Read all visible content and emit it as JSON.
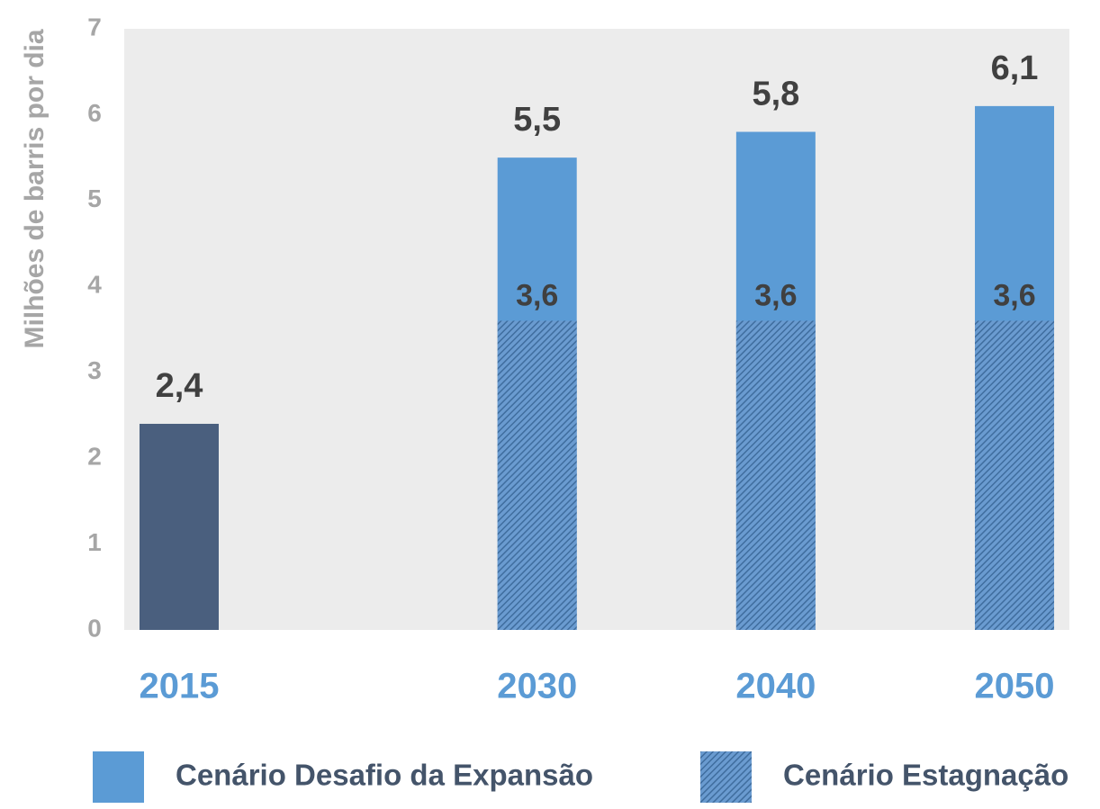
{
  "chart_data": {
    "type": "bar",
    "y_label": "Milhões de barris por dia",
    "x": [
      2015,
      2030,
      2040,
      2050
    ],
    "xlim": [
      2012.7,
      2052.3
    ],
    "ylim": [
      0,
      7
    ],
    "yticks": [
      0,
      1,
      2,
      3,
      4,
      5,
      6,
      7
    ],
    "series": [
      {
        "color": "#4a5f7e",
        "values": [
          2.4,
          null,
          null,
          null
        ],
        "value_labels": [
          "2,4",
          null,
          null,
          null
        ]
      },
      {
        "name": "Cenário Desafio da Expansão",
        "color": "#5b9bd5",
        "values": [
          null,
          5.5,
          5.8,
          6.1
        ],
        "value_labels": [
          null,
          "5,5",
          "5,8",
          "6,1"
        ]
      },
      {
        "name": "Cenário Estagnação",
        "color": "#3f6d9e",
        "pattern": "hatch",
        "values": [
          null,
          3.6,
          3.6,
          3.6
        ],
        "value_labels": [
          null,
          "3,6",
          "3,6",
          "3,6"
        ]
      }
    ],
    "x_label_color": "#5b9bd5",
    "background": "#ececec"
  }
}
